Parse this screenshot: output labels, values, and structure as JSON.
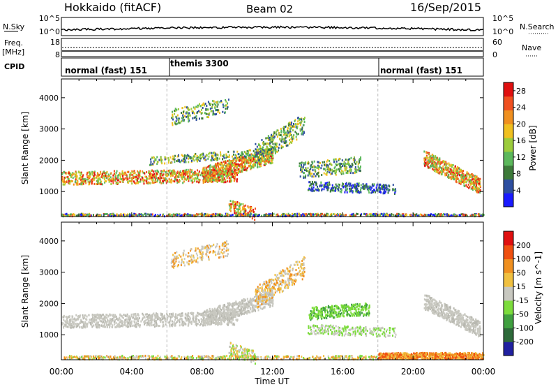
{
  "header": {
    "site": "Hokkaido (fitACF)",
    "beam": "Beam 02",
    "date": "16/Sep/2015"
  },
  "top_panel": {
    "left_label": "N.Sky",
    "left_ticks": [
      "10^5",
      "10^0"
    ],
    "right_ticks": [
      "10^5",
      "10^0"
    ],
    "right_label": "N.Search"
  },
  "freq_panel": {
    "left_label_1": "Freq.",
    "left_label_2": "[MHz]",
    "left_ticks": [
      "18",
      "8"
    ],
    "right_ticks": [
      "60",
      "0"
    ],
    "right_label": "Nave"
  },
  "cpid": {
    "label": "CPID",
    "segments": [
      {
        "name": "normal (fast) 151",
        "start_hour": 0
      },
      {
        "name": "themis 3300",
        "start_hour": 6
      },
      {
        "name": "normal (fast) 151",
        "start_hour": 18
      }
    ]
  },
  "chart_data": [
    {
      "type": "heatmap",
      "title": "Power",
      "xlabel": "",
      "ylabel": "Slant Range [km]",
      "xlim": [
        0,
        24
      ],
      "ylim": [
        200,
        4600
      ],
      "yticks": [
        "1000",
        "2000",
        "3000",
        "4000"
      ],
      "colorbar_label": "Power [dB]",
      "colorbar_ticks": [
        "28",
        "24",
        "20",
        "16",
        "12",
        "8",
        "4"
      ],
      "colorbar_range": [
        0,
        30
      ],
      "colors": [
        "#1a1aff",
        "#2e4fa0",
        "#3d7a3a",
        "#5cb85c",
        "#9ccc3c",
        "#f0c020",
        "#f09020",
        "#f05020",
        "#e01010"
      ]
    },
    {
      "type": "heatmap",
      "title": "Velocity",
      "xlabel": "Time UT",
      "ylabel": "Slant Range [km]",
      "xlim": [
        0,
        24
      ],
      "ylim": [
        200,
        4600
      ],
      "yticks": [
        "1000",
        "2000",
        "3000",
        "4000"
      ],
      "xticks": [
        "00:00",
        "04:00",
        "08:00",
        "12:00",
        "16:00",
        "20:00",
        "00:00"
      ],
      "colorbar_label": "Velocity [m s^-1]",
      "colorbar_ticks": [
        "200",
        "100",
        "50",
        "15",
        "-15",
        "-50",
        "-100",
        "-200"
      ],
      "colorbar_range": [
        -250,
        250
      ],
      "colors": [
        "#2020a0",
        "#2e6a3a",
        "#40a040",
        "#7cdc3c",
        "#c8c8c0",
        "#f0c040",
        "#f09020",
        "#f05010",
        "#e01010"
      ]
    }
  ]
}
